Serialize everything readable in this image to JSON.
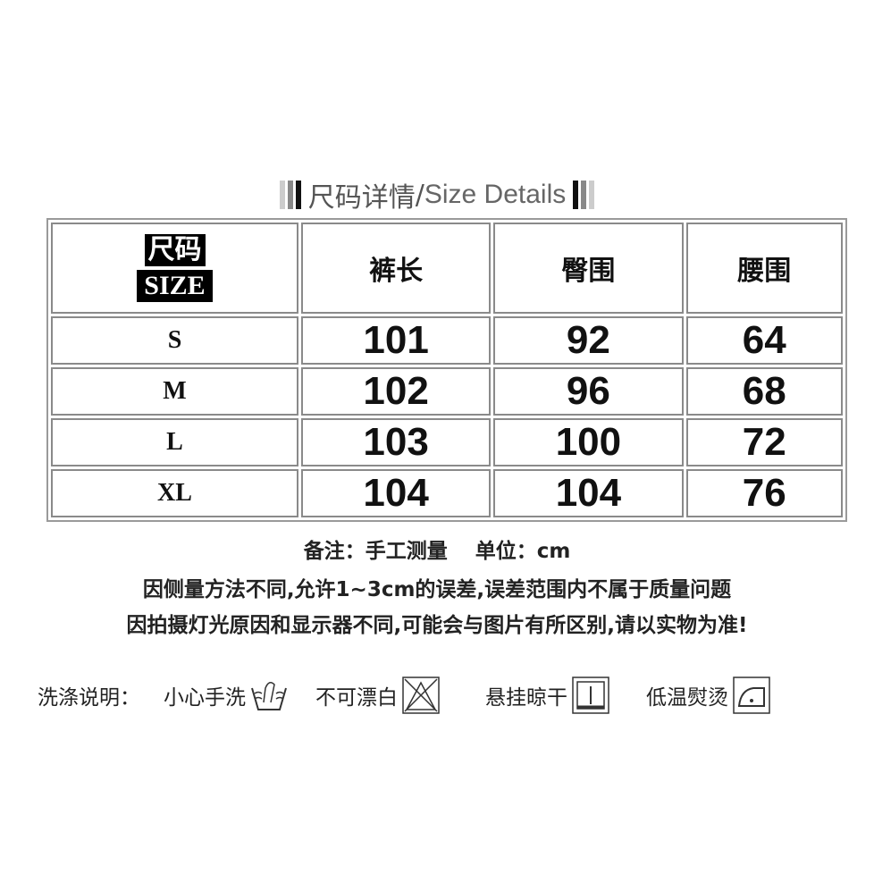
{
  "title": {
    "zh": "尺码详情",
    "sep": "/",
    "en": "Size Details"
  },
  "table": {
    "corner": {
      "zh": "尺码",
      "en": "SIZE"
    },
    "headers": [
      "裤长",
      "臀围",
      "腰围"
    ],
    "rows": [
      {
        "size": "S",
        "values": [
          "101",
          "92",
          "64"
        ]
      },
      {
        "size": "M",
        "values": [
          "102",
          "96",
          "68"
        ]
      },
      {
        "size": "L",
        "values": [
          "103",
          "100",
          "72"
        ]
      },
      {
        "size": "XL",
        "values": [
          "104",
          "104",
          "76"
        ]
      }
    ]
  },
  "notes": [
    "备注：手工测量　 单位：cm",
    "因侧量方法不同,允许1~3cm的误差,误差范围内不属于质量问题",
    "因拍摄灯光原因和显示器不同,可能会与图片有所区别,请以实物为准!"
  ],
  "care": {
    "label": "洗涤说明：",
    "items": [
      {
        "text": "小心手洗",
        "icon": "hand-wash-icon"
      },
      {
        "text": "不可漂白",
        "icon": "no-bleach-icon"
      },
      {
        "text": "悬挂晾干",
        "icon": "hang-dry-icon"
      },
      {
        "text": "低温熨烫",
        "icon": "low-iron-icon"
      }
    ]
  }
}
